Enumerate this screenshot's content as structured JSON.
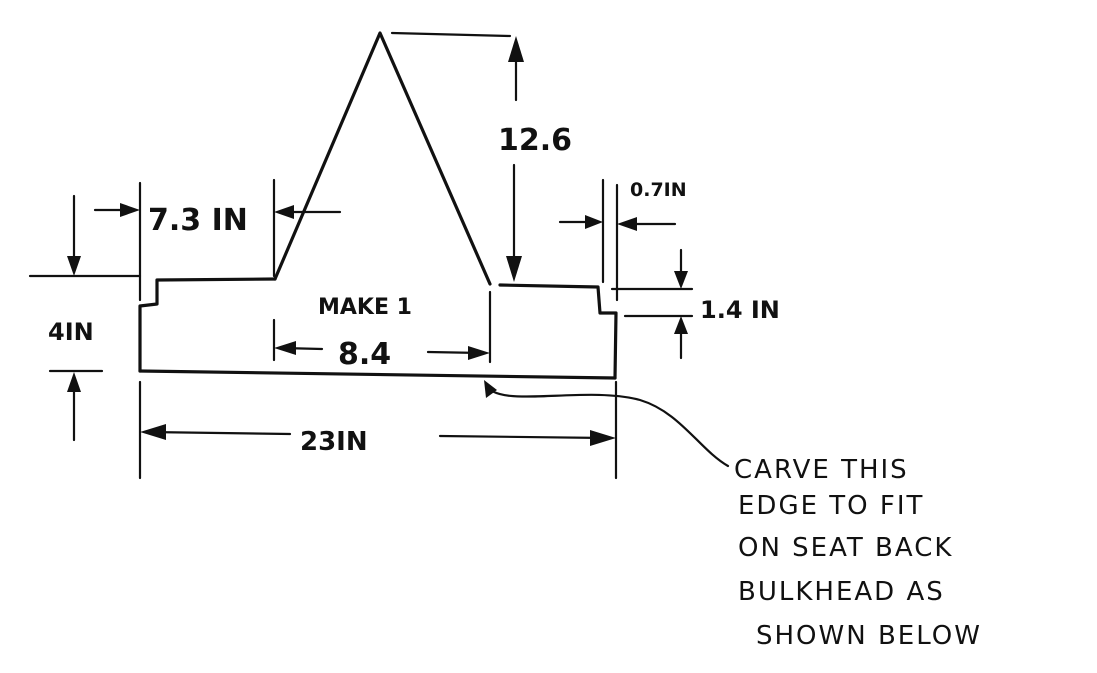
{
  "diagram": {
    "label_make": "MAKE 1",
    "dims": {
      "left_step_width": "7.3 IN",
      "peak_height": "12.6",
      "right_step_width": "0.7IN",
      "left_height": "4IN",
      "right_step_height": "1.4 IN",
      "base_top_width": "8.4",
      "overall_width": "23IN"
    },
    "note_lines": [
      "CARVE THIS",
      "EDGE TO FIT",
      "ON SEAT BACK",
      "BULKHEAD AS",
      "SHOWN BELOW"
    ]
  }
}
